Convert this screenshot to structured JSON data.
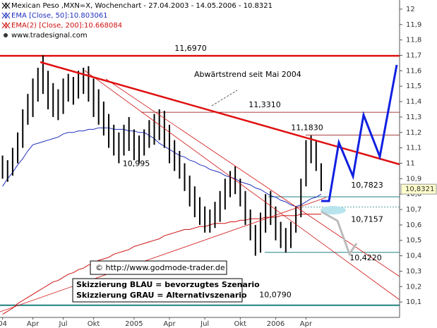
{
  "chart_data": {
    "type": "range-bar",
    "title": "Mexican Peso ,MXN=X, Wochenchart - 27.04.2003 - 14.05.2006 - 10.8321",
    "source": "www.tradesignal.com",
    "categories": [
      "04",
      null,
      null,
      null,
      null,
      null,
      "Apr",
      null,
      null,
      null,
      null,
      null,
      "Jul",
      null,
      null,
      null,
      null,
      null,
      "Okt",
      null,
      null,
      null,
      null,
      null,
      null,
      null,
      "2005",
      null,
      null,
      null,
      null,
      null,
      null,
      "Apr",
      null,
      null,
      null,
      null,
      null,
      null,
      "Jul",
      null,
      null,
      null,
      null,
      null,
      null,
      "Okt",
      null,
      null,
      null,
      null,
      null,
      null,
      "2006",
      null,
      null,
      null,
      null,
      null,
      "Apr",
      null,
      null,
      null,
      null,
      null,
      null,
      null,
      null,
      null,
      null,
      null,
      null,
      null,
      null,
      null,
      null,
      null,
      null
    ],
    "high": [
      11.05,
      11.02,
      11.1,
      11.2,
      11.35,
      11.45,
      11.55,
      11.62,
      11.7,
      11.6,
      11.52,
      11.48,
      11.55,
      11.58,
      11.56,
      11.6,
      11.62,
      11.63,
      11.55,
      11.48,
      11.4,
      11.32,
      11.25,
      11.2,
      11.25,
      11.3,
      11.22,
      11.18,
      11.22,
      11.28,
      11.32,
      11.35,
      11.34,
      11.25,
      11.15,
      11.08,
      11.0,
      10.92,
      10.85,
      10.78,
      10.72,
      10.7,
      10.75,
      10.82,
      10.9,
      10.95,
      10.98,
      10.9,
      10.82,
      10.7,
      10.6,
      10.68,
      10.8,
      10.82,
      10.72,
      10.62,
      10.58,
      10.62,
      10.72,
      10.9,
      11.15,
      11.18,
      11.15,
      11.0,
      null,
      null,
      null,
      null,
      null,
      null,
      null,
      null,
      null,
      null,
      null,
      null,
      null,
      null,
      null
    ],
    "low": [
      10.9,
      10.88,
      10.92,
      11.0,
      11.1,
      11.25,
      11.3,
      11.4,
      11.45,
      11.35,
      11.3,
      11.28,
      11.32,
      11.4,
      11.38,
      11.42,
      11.45,
      11.4,
      11.3,
      11.25,
      11.18,
      11.1,
      11.05,
      11.0,
      11.05,
      11.08,
      11.02,
      11.0,
      11.05,
      11.1,
      11.12,
      11.15,
      11.1,
      11.0,
      10.95,
      10.9,
      10.82,
      10.72,
      10.65,
      10.6,
      10.55,
      10.55,
      10.58,
      10.62,
      10.7,
      10.78,
      10.8,
      10.72,
      10.6,
      10.5,
      10.4,
      10.42,
      10.55,
      10.6,
      10.5,
      10.45,
      10.42,
      10.45,
      10.55,
      10.65,
      10.85,
      11.0,
      10.95,
      10.82,
      null,
      null,
      null,
      null,
      null,
      null,
      null,
      null,
      null,
      null,
      null,
      null,
      null,
      null,
      null
    ],
    "bar_color": "#000000",
    "series": [
      {
        "name": "EMA [Close, 50]:10.803061",
        "color": "#2030c0",
        "values": [
          10.85,
          10.9,
          10.94,
          10.99,
          11.03,
          11.08,
          11.12,
          11.13,
          11.14,
          11.15,
          11.16,
          11.17,
          11.19,
          11.2,
          11.2,
          11.21,
          11.21,
          11.22,
          11.22,
          11.23,
          11.23,
          11.23,
          11.22,
          11.22,
          11.22,
          11.21,
          11.21,
          11.2,
          11.2,
          11.18,
          11.16,
          11.13,
          11.11,
          11.09,
          11.07,
          11.05,
          11.04,
          11.02,
          11.01,
          10.99,
          10.98,
          10.96,
          10.95,
          10.94,
          10.92,
          10.91,
          10.9,
          10.88,
          10.87,
          10.86,
          10.84,
          10.83,
          10.81,
          10.79,
          10.78,
          10.76,
          10.75,
          10.73,
          10.72,
          10.73,
          10.75,
          10.77,
          10.78,
          10.8,
          null,
          null,
          null,
          null,
          null,
          null,
          null,
          null,
          null,
          null,
          null,
          null,
          null,
          null,
          null
        ]
      },
      {
        "name": "EMA(2) [Close, 200]:10.668084",
        "color": "#d01010",
        "values": [
          10.02,
          10.04,
          10.06,
          10.09,
          10.11,
          10.13,
          10.15,
          10.17,
          10.19,
          10.21,
          10.23,
          10.24,
          10.26,
          10.28,
          10.29,
          10.31,
          10.32,
          10.34,
          10.35,
          10.37,
          10.38,
          10.39,
          10.41,
          10.42,
          10.43,
          10.44,
          10.46,
          10.47,
          10.48,
          10.49,
          10.5,
          10.51,
          10.53,
          10.54,
          10.55,
          10.56,
          10.57,
          10.57,
          10.58,
          10.59,
          10.59,
          10.6,
          10.61,
          10.61,
          10.61,
          10.62,
          10.62,
          10.63,
          10.63,
          10.64,
          10.64,
          10.64,
          10.65,
          10.65,
          10.65,
          10.66,
          10.66,
          10.66,
          10.66,
          10.67,
          10.67,
          10.67,
          10.67,
          10.67,
          null,
          null,
          null,
          null,
          null,
          null,
          null,
          null,
          null,
          null,
          null,
          null,
          null,
          null,
          null
        ]
      }
    ],
    "ylim": [
      10.0,
      12.05
    ],
    "yticks": [
      {
        "value": 10.1,
        "label": "10,1"
      },
      {
        "value": 10.2,
        "label": "10,2"
      },
      {
        "value": 10.3,
        "label": "10,3"
      },
      {
        "value": 10.4,
        "label": "10,4"
      },
      {
        "value": 10.5,
        "label": "10,5"
      },
      {
        "value": 10.6,
        "label": "10,6"
      },
      {
        "value": 10.7,
        "label": "10,7"
      },
      {
        "value": 10.8,
        "label": "10,8"
      },
      {
        "value": 10.9,
        "label": "10,9"
      },
      11,
      {
        "value": 11.1,
        "label": "11,1"
      },
      {
        "value": 11.2,
        "label": "11,2"
      },
      {
        "value": 11.3,
        "label": "11,3"
      },
      {
        "value": 11.4,
        "label": "11,4"
      },
      {
        "value": 11.5,
        "label": "11,5"
      },
      {
        "value": 11.6,
        "label": "11,6"
      },
      {
        "value": 11.7,
        "label": "11,7"
      },
      {
        "value": 11.8,
        "label": "11,8"
      },
      {
        "value": 11.9,
        "label": "11,9"
      },
      12
    ],
    "last": {
      "value": 10.8321,
      "label": "10,8321"
    },
    "levels": [
      {
        "value": 11.697,
        "label": "11,6970"
      },
      {
        "value": 11.331,
        "label": "11,3310"
      },
      {
        "value": 11.183,
        "label": "11,1830"
      },
      {
        "value": 10.995,
        "label": "10,995"
      },
      {
        "value": 10.7823,
        "label": "10,7823"
      },
      {
        "value": 10.7157,
        "label": "10,7157"
      },
      {
        "value": 10.422,
        "label": "10,4220"
      },
      {
        "value": 10.079,
        "label": "10,0790"
      }
    ],
    "annotations": [
      "Abwärtstrend seit Mai 2004",
      "© http://www.godmode-trader.de",
      "Skizzierung BLAU = bevorzugtes Szenario",
      "Skizzierung GRAU = Alternativszenario"
    ]
  }
}
